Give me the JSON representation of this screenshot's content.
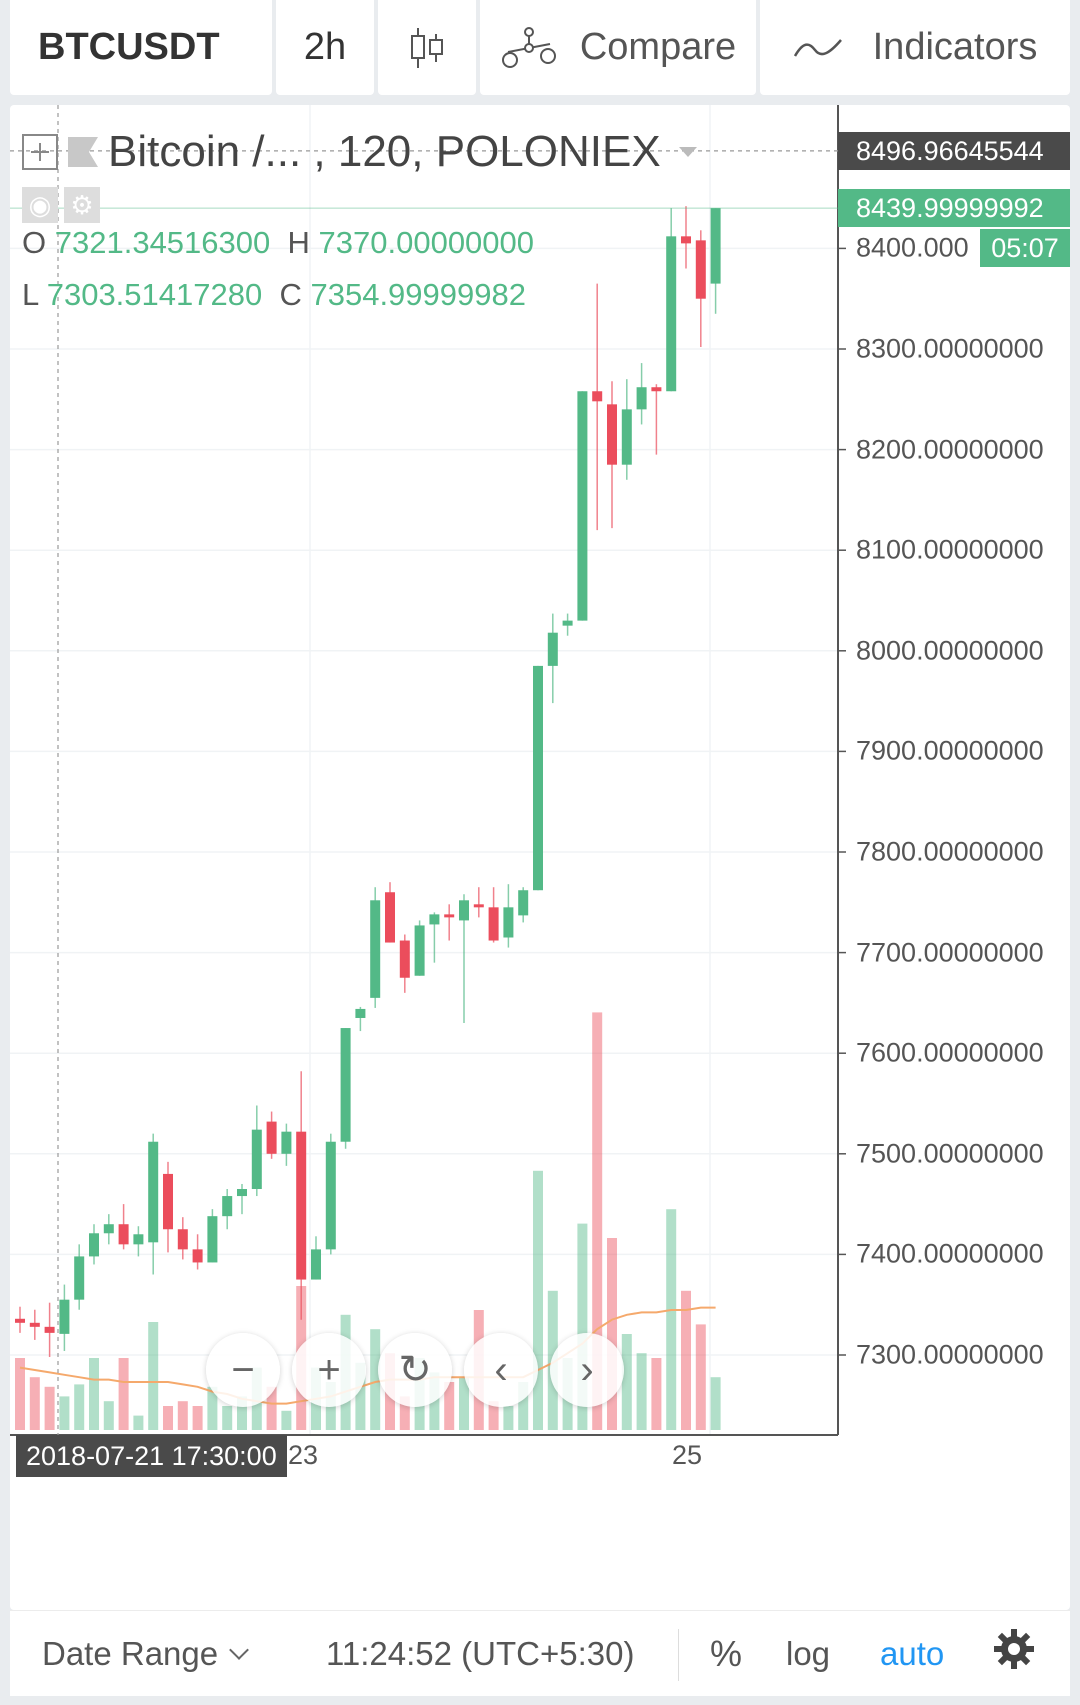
{
  "toolbar": {
    "symbol": "BTCUSDT",
    "interval": "2h",
    "chart_type_icon": "candles-icon",
    "compare_label": "Compare",
    "compare_icon": "compare-scale-icon",
    "indicators_label": "Indicators",
    "indicators_icon": "indicators-wave-icon"
  },
  "legend": {
    "title": "Bitcoin /... , 120, POLONIEX",
    "open_label": "O",
    "open": "7321.34516300",
    "high_label": "H",
    "high": "7370.00000000",
    "low_label": "L",
    "low": "7303.51417280",
    "close_label": "C",
    "close": "7354.99999982"
  },
  "price_axis": {
    "ticks": [
      "8400.000",
      "8300.00000000",
      "8200.00000000",
      "8100.00000000",
      "8000.00000000",
      "7900.00000000",
      "7800.00000000",
      "7700.00000000",
      "7600.00000000",
      "7500.00000000",
      "7400.00000000",
      "7300.00000000"
    ],
    "crosshair_price": "8496.96645544",
    "last_price": "8439.99999992",
    "countdown": "05:07"
  },
  "time_axis": {
    "crosshair_time": "2018-07-21 17:30:00",
    "labels": [
      "23",
      "25"
    ]
  },
  "nav_buttons": {
    "zoom_out": "−",
    "zoom_in": "+",
    "reset": "↻",
    "prev": "‹",
    "next": "›"
  },
  "bottom_bar": {
    "date_range_label": "Date Range",
    "clock": "11:24:52 (UTC+5:30)",
    "percent_label": "%",
    "log_label": "log",
    "auto_label": "auto"
  },
  "colors": {
    "up": "#53b987",
    "down": "#eb4d5c",
    "accent": "#2196f3",
    "ma": "#f5a96c"
  },
  "chart_data": {
    "type": "candlestick",
    "symbol": "BTCUSDT",
    "interval_minutes": 120,
    "exchange": "POLONIEX",
    "ylim": [
      7220,
      8540
    ],
    "candles": [
      {
        "o": 7336,
        "h": 7348,
        "l": 7322,
        "c": 7332,
        "v": 0.3
      },
      {
        "o": 7332,
        "h": 7345,
        "l": 7315,
        "c": 7328,
        "v": 0.22
      },
      {
        "o": 7328,
        "h": 7352,
        "l": 7298,
        "c": 7322,
        "v": 0.18
      },
      {
        "o": 7321,
        "h": 7370,
        "l": 7304,
        "c": 7355,
        "v": 0.14
      },
      {
        "o": 7355,
        "h": 7410,
        "l": 7345,
        "c": 7398,
        "v": 0.19
      },
      {
        "o": 7398,
        "h": 7430,
        "l": 7390,
        "c": 7421,
        "v": 0.3
      },
      {
        "o": 7421,
        "h": 7440,
        "l": 7410,
        "c": 7430,
        "v": 0.12
      },
      {
        "o": 7430,
        "h": 7450,
        "l": 7405,
        "c": 7410,
        "v": 0.3
      },
      {
        "o": 7410,
        "h": 7428,
        "l": 7398,
        "c": 7420,
        "v": 0.06
      },
      {
        "o": 7412,
        "h": 7520,
        "l": 7380,
        "c": 7512,
        "v": 0.45
      },
      {
        "o": 7480,
        "h": 7492,
        "l": 7402,
        "c": 7425,
        "v": 0.1
      },
      {
        "o": 7425,
        "h": 7437,
        "l": 7395,
        "c": 7405,
        "v": 0.12
      },
      {
        "o": 7405,
        "h": 7420,
        "l": 7385,
        "c": 7392,
        "v": 0.1
      },
      {
        "o": 7392,
        "h": 7445,
        "l": 7392,
        "c": 7438,
        "v": 0.18
      },
      {
        "o": 7438,
        "h": 7465,
        "l": 7425,
        "c": 7458,
        "v": 0.1
      },
      {
        "o": 7458,
        "h": 7470,
        "l": 7440,
        "c": 7465,
        "v": 0.14
      },
      {
        "o": 7465,
        "h": 7548,
        "l": 7458,
        "c": 7524,
        "v": 0.26
      },
      {
        "o": 7532,
        "h": 7542,
        "l": 7495,
        "c": 7500,
        "v": 0.18
      },
      {
        "o": 7500,
        "h": 7530,
        "l": 7488,
        "c": 7522,
        "v": 0.08
      },
      {
        "o": 7522,
        "h": 7582,
        "l": 7335,
        "c": 7375,
        "v": 0.6
      },
      {
        "o": 7375,
        "h": 7418,
        "l": 7375,
        "c": 7405,
        "v": 0.26
      },
      {
        "o": 7405,
        "h": 7520,
        "l": 7400,
        "c": 7512,
        "v": 0.2
      },
      {
        "o": 7512,
        "h": 7625,
        "l": 7505,
        "c": 7625,
        "v": 0.48
      },
      {
        "o": 7635,
        "h": 7646,
        "l": 7622,
        "c": 7644,
        "v": 0.28
      },
      {
        "o": 7655,
        "h": 7765,
        "l": 7645,
        "c": 7752,
        "v": 0.42
      },
      {
        "o": 7760,
        "h": 7770,
        "l": 7710,
        "c": 7710,
        "v": 0.32
      },
      {
        "o": 7712,
        "h": 7718,
        "l": 7660,
        "c": 7675,
        "v": 0.14
      },
      {
        "o": 7677,
        "h": 7732,
        "l": 7677,
        "c": 7727,
        "v": 0.3
      },
      {
        "o": 7728,
        "h": 7740,
        "l": 7690,
        "c": 7738,
        "v": 0.24
      },
      {
        "o": 7738,
        "h": 7748,
        "l": 7712,
        "c": 7737,
        "v": 0.2
      },
      {
        "o": 7732,
        "h": 7758,
        "l": 7630,
        "c": 7752,
        "v": 0.22
      },
      {
        "o": 7748,
        "h": 7765,
        "l": 7735,
        "c": 7745,
        "v": 0.5
      },
      {
        "o": 7745,
        "h": 7765,
        "l": 7710,
        "c": 7712,
        "v": 0.12
      },
      {
        "o": 7715,
        "h": 7768,
        "l": 7705,
        "c": 7745,
        "v": 0.1
      },
      {
        "o": 7737,
        "h": 7765,
        "l": 7730,
        "c": 7762,
        "v": 0.2
      },
      {
        "o": 7762,
        "h": 7985,
        "l": 7762,
        "c": 7985,
        "v": 1.08
      },
      {
        "o": 7985,
        "h": 8037,
        "l": 7948,
        "c": 8018,
        "v": 0.58
      },
      {
        "o": 8025,
        "h": 8037,
        "l": 8015,
        "c": 8030,
        "v": 0.3
      },
      {
        "o": 8030,
        "h": 8258,
        "l": 8030,
        "c": 8258,
        "v": 0.86
      },
      {
        "o": 8258,
        "h": 8365,
        "l": 8120,
        "c": 8248,
        "v": 1.74
      },
      {
        "o": 8245,
        "h": 8268,
        "l": 8122,
        "c": 8185,
        "v": 0.8
      },
      {
        "o": 8185,
        "h": 8270,
        "l": 8170,
        "c": 8240,
        "v": 0.4
      },
      {
        "o": 8240,
        "h": 8286,
        "l": 8225,
        "c": 8262,
        "v": 0.32
      },
      {
        "o": 8262,
        "h": 8265,
        "l": 8195,
        "c": 8258,
        "v": 0.3
      },
      {
        "o": 8258,
        "h": 8440,
        "l": 8258,
        "c": 8412,
        "v": 0.92
      },
      {
        "o": 8412,
        "h": 8442,
        "l": 8380,
        "c": 8405,
        "v": 0.58
      },
      {
        "o": 8408,
        "h": 8418,
        "l": 8302,
        "c": 8350,
        "v": 0.44
      },
      {
        "o": 8365,
        "h": 8440,
        "l": 8335,
        "c": 8440,
        "v": 0.22
      }
    ],
    "volume_ma": [
      0.26,
      0.25,
      0.24,
      0.23,
      0.22,
      0.21,
      0.21,
      0.2,
      0.2,
      0.2,
      0.2,
      0.19,
      0.18,
      0.16,
      0.15,
      0.13,
      0.12,
      0.11,
      0.11,
      0.12,
      0.13,
      0.14,
      0.16,
      0.18,
      0.2,
      0.21,
      0.21,
      0.21,
      0.22,
      0.22,
      0.22,
      0.22,
      0.22,
      0.22,
      0.22,
      0.25,
      0.28,
      0.32,
      0.36,
      0.42,
      0.46,
      0.48,
      0.49,
      0.49,
      0.5,
      0.5,
      0.51,
      0.51
    ]
  }
}
